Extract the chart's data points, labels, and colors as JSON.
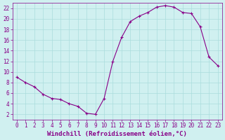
{
  "x": [
    0,
    1,
    2,
    3,
    4,
    5,
    6,
    7,
    8,
    9,
    10,
    11,
    12,
    13,
    14,
    15,
    16,
    17,
    18,
    19,
    20,
    21,
    22,
    23
  ],
  "y": [
    9.0,
    8.0,
    7.2,
    5.8,
    5.0,
    4.8,
    4.0,
    3.5,
    2.2,
    2.0,
    5.0,
    12.0,
    16.5,
    19.5,
    20.5,
    21.2,
    22.2,
    22.5,
    22.2,
    21.2,
    21.0,
    18.5,
    12.8,
    11.2
  ],
  "line_color": "#880088",
  "marker": "+",
  "bg_color": "#d0f0f0",
  "grid_color": "#aadddd",
  "xlabel": "Windchill (Refroidissement éolien,°C)",
  "xlim": [
    -0.5,
    23.5
  ],
  "ylim": [
    1,
    23
  ],
  "yticks": [
    2,
    4,
    6,
    8,
    10,
    12,
    14,
    16,
    18,
    20,
    22
  ],
  "xticks": [
    0,
    1,
    2,
    3,
    4,
    5,
    6,
    7,
    8,
    9,
    10,
    11,
    12,
    13,
    14,
    15,
    16,
    17,
    18,
    19,
    20,
    21,
    22,
    23
  ],
  "tick_color": "#880088",
  "label_fontsize": 6.5,
  "tick_fontsize": 5.5
}
